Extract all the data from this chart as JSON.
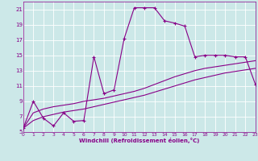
{
  "xlabel": "Windchill (Refroidissement éolien,°C)",
  "bg_color": "#cce8e8",
  "grid_color": "#ffffff",
  "line_color": "#880088",
  "xlim": [
    0,
    23
  ],
  "ylim": [
    5,
    22
  ],
  "xticks": [
    0,
    1,
    2,
    3,
    4,
    5,
    6,
    7,
    8,
    9,
    10,
    11,
    12,
    13,
    14,
    15,
    16,
    17,
    18,
    19,
    20,
    21,
    22,
    23
  ],
  "yticks": [
    5,
    7,
    9,
    11,
    13,
    15,
    17,
    19,
    21
  ],
  "curve1_x": [
    0,
    1,
    2,
    3,
    4,
    5,
    6,
    7,
    8,
    9,
    10,
    11,
    12,
    13,
    14,
    15,
    16,
    17,
    18,
    19,
    20,
    21,
    22,
    23
  ],
  "curve1_y": [
    5.5,
    9.0,
    6.8,
    5.8,
    7.5,
    6.4,
    6.5,
    14.8,
    10.0,
    10.5,
    17.2,
    21.2,
    21.2,
    21.2,
    19.5,
    19.2,
    18.8,
    14.8,
    15.0,
    15.0,
    15.0,
    14.8,
    14.8,
    11.2
  ],
  "curve2_x": [
    0,
    1,
    2,
    3,
    4,
    5,
    6,
    7,
    8,
    9,
    10,
    11,
    12,
    13,
    14,
    15,
    16,
    17,
    18,
    19,
    20,
    21,
    22,
    23
  ],
  "curve2_y": [
    5.5,
    7.5,
    8.0,
    8.3,
    8.5,
    8.7,
    9.0,
    9.2,
    9.4,
    9.7,
    10.0,
    10.3,
    10.7,
    11.2,
    11.7,
    12.2,
    12.6,
    13.0,
    13.3,
    13.5,
    13.7,
    13.9,
    14.1,
    14.3
  ],
  "curve3_x": [
    0,
    1,
    2,
    3,
    4,
    5,
    6,
    7,
    8,
    9,
    10,
    11,
    12,
    13,
    14,
    15,
    16,
    17,
    18,
    19,
    20,
    21,
    22,
    23
  ],
  "curve3_y": [
    5.5,
    6.5,
    7.0,
    7.3,
    7.6,
    7.8,
    8.0,
    8.3,
    8.6,
    8.9,
    9.2,
    9.5,
    9.8,
    10.2,
    10.6,
    11.0,
    11.4,
    11.8,
    12.1,
    12.4,
    12.7,
    12.9,
    13.1,
    13.3
  ]
}
